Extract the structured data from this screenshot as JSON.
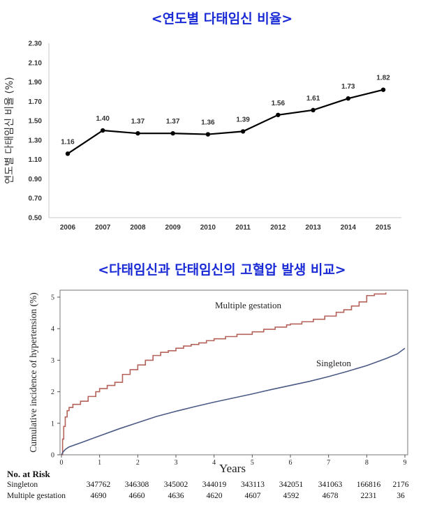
{
  "titles": {
    "chart1": "<연도별 다태임신 비율>",
    "chart2": "<다태임신과 단태임신의 고혈압 발생 비교>"
  },
  "chart_data": [
    {
      "type": "line",
      "title": "<연도별 다태임신 비율>",
      "xlabel": "",
      "ylabel": "연도별 다태임신 비율 (%)",
      "categories": [
        "2006",
        "2007",
        "2008",
        "2009",
        "2010",
        "2011",
        "2012",
        "2013",
        "2014",
        "2015"
      ],
      "values": [
        1.16,
        1.4,
        1.37,
        1.37,
        1.36,
        1.39,
        1.56,
        1.61,
        1.73,
        1.82
      ],
      "data_labels": [
        "1.16",
        "1.40",
        "1.37",
        "1.37",
        "1.36",
        "1.39",
        "1.56",
        "1.61",
        "1.73",
        "1.82"
      ],
      "yticks": [
        "0.50",
        "0.70",
        "0.90",
        "1.10",
        "1.30",
        "1.50",
        "1.70",
        "1.90",
        "2.10",
        "2.30"
      ],
      "ylim": [
        0.5,
        2.3
      ],
      "grid": false,
      "colors": {
        "line": "#000000"
      }
    },
    {
      "type": "line",
      "title": "<다태임신과 단태임신의 고혈압 발생 비교>",
      "xlabel": "Years",
      "ylabel": "Cumulative incidence of hypertension (%)",
      "xlim": [
        0,
        9
      ],
      "ylim": [
        0,
        5.2
      ],
      "xticks": [
        "0",
        "1",
        "2",
        "3",
        "4",
        "5",
        "6",
        "7",
        "8",
        "9"
      ],
      "yticks": [
        "0",
        "1",
        "2",
        "3",
        "4",
        "5"
      ],
      "series": [
        {
          "name": "Multiple gestation",
          "color": "#b5635a",
          "x": [
            0,
            0.03,
            0.06,
            0.1,
            0.15,
            0.2,
            0.3,
            0.5,
            0.7,
            0.9,
            1.0,
            1.2,
            1.4,
            1.6,
            1.8,
            2.0,
            2.2,
            2.4,
            2.6,
            2.8,
            3.0,
            3.2,
            3.4,
            3.6,
            3.8,
            4.0,
            4.3,
            4.6,
            5.0,
            5.3,
            5.6,
            5.9,
            6.0,
            6.3,
            6.6,
            6.9,
            7.2,
            7.4,
            7.6,
            7.8,
            8.0,
            8.2,
            8.5
          ],
          "y": [
            0,
            0.5,
            0.9,
            1.2,
            1.4,
            1.5,
            1.6,
            1.7,
            1.85,
            2.0,
            2.1,
            2.2,
            2.3,
            2.55,
            2.7,
            2.85,
            3.0,
            3.15,
            3.25,
            3.3,
            3.38,
            3.45,
            3.5,
            3.55,
            3.62,
            3.68,
            3.75,
            3.82,
            3.9,
            3.98,
            4.05,
            4.12,
            4.15,
            4.22,
            4.3,
            4.4,
            4.52,
            4.6,
            4.72,
            4.85,
            5.05,
            5.1,
            5.15
          ]
        },
        {
          "name": "Singleton",
          "color": "#4b5b86",
          "x": [
            0,
            0.05,
            0.1,
            0.2,
            0.5,
            1.0,
            1.5,
            2.0,
            2.5,
            3.0,
            3.5,
            4.0,
            4.5,
            5.0,
            5.5,
            6.0,
            6.5,
            7.0,
            7.5,
            8.0,
            8.5,
            8.8,
            9.0
          ],
          "y": [
            0,
            0.1,
            0.17,
            0.25,
            0.38,
            0.6,
            0.82,
            1.02,
            1.22,
            1.38,
            1.53,
            1.67,
            1.8,
            1.93,
            2.07,
            2.2,
            2.33,
            2.48,
            2.65,
            2.83,
            3.05,
            3.2,
            3.38
          ]
        }
      ],
      "annotations": [
        "Multiple gestation",
        "Singleton"
      ]
    }
  ],
  "risk_table": {
    "header": "No. at Risk",
    "rows": [
      {
        "label": "Singleton",
        "values": [
          "347762",
          "346308",
          "345002",
          "344019",
          "343113",
          "342051",
          "341063",
          "166816",
          "2176"
        ]
      },
      {
        "label": "Multiple gestation",
        "values": [
          "4690",
          "4660",
          "4636",
          "4620",
          "4607",
          "4592",
          "4678",
          "2231",
          "36"
        ]
      }
    ]
  }
}
